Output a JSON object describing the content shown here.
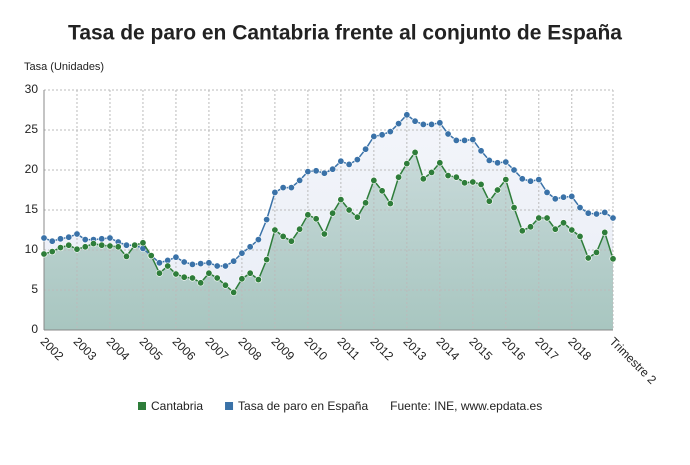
{
  "chart_data": {
    "type": "line",
    "title": "Tasa de paro en Cantabria frente al conjunto de España",
    "y_label": "Tasa (Unidades)",
    "source": "Fuente: INE, www.epdata.es",
    "categories": [
      "2002",
      null,
      null,
      null,
      "2003",
      null,
      null,
      null,
      "2004",
      null,
      null,
      null,
      "2005",
      null,
      null,
      null,
      "2006",
      null,
      null,
      null,
      "2007",
      null,
      null,
      null,
      "2008",
      null,
      null,
      null,
      "2009",
      null,
      null,
      null,
      "2010",
      null,
      null,
      null,
      "2011",
      null,
      null,
      null,
      "2012",
      null,
      null,
      null,
      "2013",
      null,
      null,
      null,
      "2014",
      null,
      null,
      null,
      "2015",
      null,
      null,
      null,
      "2016",
      null,
      null,
      null,
      "2017",
      null,
      null,
      null,
      "2018",
      null,
      null,
      null,
      null,
      "Trimestre 2"
    ],
    "series": [
      {
        "name": "Cantabria",
        "color": "#2e7d3a",
        "area_color": "#a8c6c0",
        "values": [
          9.5,
          9.8,
          10.3,
          10.6,
          10.1,
          10.4,
          10.8,
          10.6,
          10.5,
          10.4,
          9.2,
          10.6,
          10.9,
          9.3,
          7.1,
          8.0,
          7.0,
          6.6,
          6.5,
          5.9,
          7.1,
          6.5,
          5.6,
          4.7,
          6.4,
          7.1,
          6.3,
          8.8,
          12.5,
          11.7,
          11.1,
          12.6,
          14.4,
          13.9,
          12.0,
          14.6,
          16.3,
          15.0,
          14.1,
          15.9,
          18.7,
          17.4,
          15.8,
          19.1,
          20.8,
          22.2,
          18.9,
          19.7,
          20.9,
          19.3,
          19.1,
          18.4,
          18.5,
          18.2,
          16.1,
          17.5,
          18.8,
          15.3,
          12.4,
          12.9,
          14.0,
          14.0,
          12.6,
          13.4,
          12.5,
          11.7,
          9.0,
          9.7,
          12.2,
          8.9
        ]
      },
      {
        "name": "Tasa de paro en España",
        "color": "#3a72a8",
        "area_color": "#e9edf6",
        "values": [
          11.5,
          11.1,
          11.4,
          11.6,
          12.0,
          11.3,
          11.3,
          11.4,
          11.5,
          11.0,
          10.6,
          10.6,
          10.2,
          9.3,
          8.4,
          8.7,
          9.1,
          8.5,
          8.2,
          8.3,
          8.4,
          8.0,
          8.0,
          8.6,
          9.6,
          10.4,
          11.3,
          13.8,
          17.2,
          17.8,
          17.8,
          18.7,
          19.8,
          19.9,
          19.6,
          20.1,
          21.1,
          20.7,
          21.3,
          22.6,
          24.2,
          24.4,
          24.8,
          25.8,
          26.9,
          26.1,
          25.7,
          25.7,
          25.9,
          24.5,
          23.7,
          23.7,
          23.8,
          22.4,
          21.2,
          20.9,
          21.0,
          20.0,
          18.9,
          18.6,
          18.8,
          17.2,
          16.4,
          16.6,
          16.7,
          15.3,
          14.6,
          14.5,
          14.7,
          14.0
        ]
      }
    ],
    "ylim": [
      0,
      30
    ],
    "yticks": [
      0,
      5,
      10,
      15,
      20,
      25,
      30
    ],
    "grid": true
  }
}
